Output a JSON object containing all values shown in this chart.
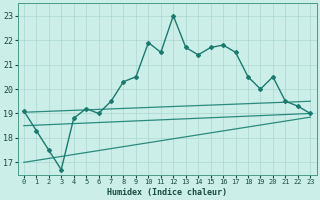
{
  "x": [
    0,
    1,
    2,
    3,
    4,
    5,
    6,
    7,
    8,
    9,
    10,
    11,
    12,
    13,
    14,
    15,
    16,
    17,
    18,
    19,
    20,
    21,
    22,
    23
  ],
  "y_main": [
    19.1,
    18.3,
    17.5,
    16.7,
    18.8,
    19.2,
    19.0,
    19.5,
    20.3,
    20.5,
    21.9,
    21.5,
    23.0,
    21.7,
    21.4,
    21.7,
    21.8,
    21.5,
    20.5,
    20.0,
    20.5,
    19.5,
    19.3,
    19.0
  ],
  "y_upper_start": 19.05,
  "y_upper_end": 19.5,
  "y_middle_start": 18.5,
  "y_middle_end": 19.0,
  "y_lower_start": 17.0,
  "y_lower_end": 18.85,
  "color_main": "#1a7a6e",
  "color_lines": "#2a8a7e",
  "bg_color": "#cceee8",
  "grid_color": "#aad8d0",
  "xlabel": "Humidex (Indice chaleur)",
  "ylim": [
    16.5,
    23.5
  ],
  "xlim": [
    -0.5,
    23.5
  ],
  "yticks": [
    17,
    18,
    19,
    20,
    21,
    22,
    23
  ],
  "xticks": [
    0,
    1,
    2,
    3,
    4,
    5,
    6,
    7,
    8,
    9,
    10,
    11,
    12,
    13,
    14,
    15,
    16,
    17,
    18,
    19,
    20,
    21,
    22,
    23
  ]
}
